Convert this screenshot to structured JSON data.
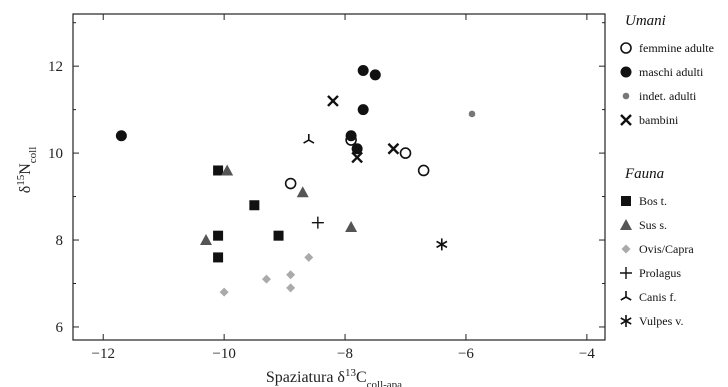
{
  "chart_data": {
    "type": "scatter",
    "title": "",
    "xlabel": {
      "prefix": "Spaziatura δ",
      "sup": "13",
      "main": "C",
      "sub": "coll-apa"
    },
    "ylabel": {
      "prefix": "δ",
      "sup": "15",
      "main": "N",
      "sub": "coll"
    },
    "xlim": [
      -12.5,
      -3.7
    ],
    "ylim": [
      5.7,
      13.2
    ],
    "xticks": [
      -12,
      -10,
      -8,
      -6,
      -4
    ],
    "yticks": [
      6,
      8,
      10,
      12
    ],
    "grid": false,
    "legend_position": "right",
    "groups": [
      {
        "heading": "Umani",
        "series": [
          {
            "name": "femmine adulte",
            "marker": "open-circle",
            "color": "#111111",
            "points": [
              [
                -8.9,
                9.3
              ],
              [
                -7.9,
                10.3
              ],
              [
                -7.0,
                10.0
              ],
              [
                -6.7,
                9.6
              ]
            ]
          },
          {
            "name": "maschi adulti",
            "marker": "filled-circle",
            "color": "#111111",
            "points": [
              [
                -11.7,
                10.4
              ],
              [
                -7.7,
                11.9
              ],
              [
                -7.5,
                11.8
              ],
              [
                -7.7,
                11.0
              ],
              [
                -7.9,
                10.4
              ],
              [
                -7.8,
                10.1
              ]
            ]
          },
          {
            "name": "indet. adulti",
            "marker": "small-circle",
            "color": "#777777",
            "points": [
              [
                -5.9,
                10.9
              ]
            ]
          },
          {
            "name": "bambini",
            "marker": "x",
            "color": "#111111",
            "points": [
              [
                -8.2,
                11.2
              ],
              [
                -7.8,
                9.9
              ],
              [
                -7.2,
                10.1
              ]
            ]
          }
        ]
      },
      {
        "heading": "Fauna",
        "series": [
          {
            "name": "Bos t.",
            "marker": "square",
            "color": "#111111",
            "points": [
              [
                -10.1,
                9.6
              ],
              [
                -9.5,
                8.8
              ],
              [
                -10.1,
                8.1
              ],
              [
                -9.1,
                8.1
              ],
              [
                -10.1,
                7.6
              ]
            ]
          },
          {
            "name": "Sus s.",
            "marker": "triangle",
            "color": "#555555",
            "points": [
              [
                -9.95,
                9.6
              ],
              [
                -8.7,
                9.1
              ],
              [
                -10.3,
                8.0
              ],
              [
                -7.9,
                8.3
              ]
            ]
          },
          {
            "name": "Ovis/Capra",
            "marker": "diamond",
            "color": "#aaaaaa",
            "points": [
              [
                -8.6,
                7.6
              ],
              [
                -9.3,
                7.1
              ],
              [
                -8.9,
                7.2
              ],
              [
                -8.9,
                6.9
              ],
              [
                -10.0,
                6.8
              ]
            ]
          },
          {
            "name": "Prolagus",
            "marker": "plus",
            "color": "#111111",
            "points": [
              [
                -8.45,
                8.4
              ]
            ]
          },
          {
            "name": "Canis f.",
            "marker": "tripod",
            "color": "#111111",
            "points": [
              [
                -8.6,
                10.3
              ]
            ]
          },
          {
            "name": "Vulpes v.",
            "marker": "asterisk",
            "color": "#111111",
            "points": [
              [
                -6.4,
                7.9
              ]
            ]
          }
        ]
      }
    ]
  }
}
